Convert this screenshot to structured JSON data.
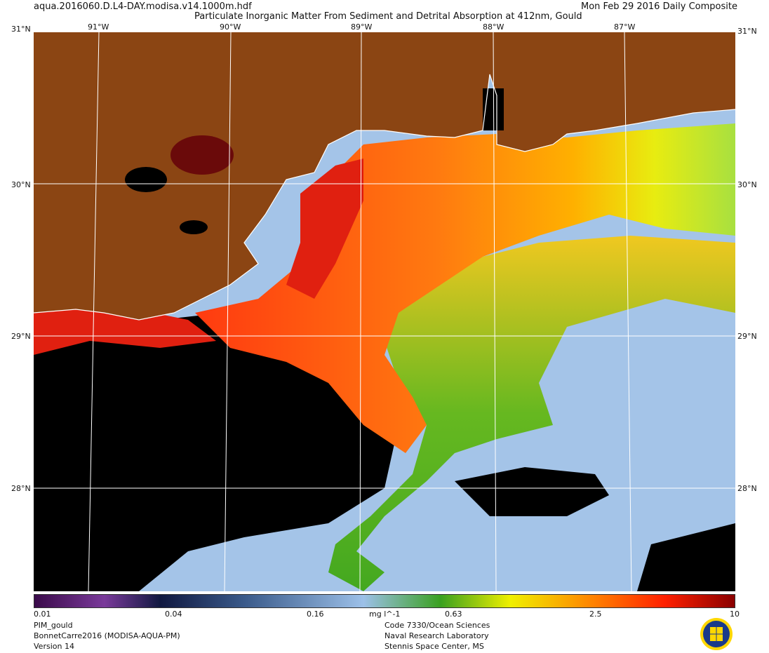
{
  "header": {
    "filename": "aqua.2016060.D.L4-DAY.modisa.v14.1000m.hdf",
    "title": "Particulate Inorganic Matter From Sediment and Detrital Absorption at 412nm, Gould",
    "date": "Mon Feb 29 2016 Daily Composite"
  },
  "axes": {
    "longitudes": [
      "91°W",
      "90°W",
      "89°W",
      "88°W",
      "87°W"
    ],
    "latitudes": [
      "31°N",
      "30°N",
      "29°N",
      "28°N"
    ],
    "corner_label": "31°N"
  },
  "colorbar": {
    "ticks": [
      "0.01",
      "0.04",
      "0.16",
      "0.63",
      "2.5",
      "10"
    ],
    "units": "mg l^-1",
    "colors": [
      "#3a0a4a",
      "#7a3a9a",
      "#101840",
      "#3a5a8a",
      "#9cc0e8",
      "#3aa020",
      "#f0f000",
      "#ff8000",
      "#ff2000",
      "#8a0000"
    ]
  },
  "colors": {
    "land": "#8b4513",
    "nodata": "#000000",
    "gridline": "#ffffff",
    "coast": "#ffffff"
  },
  "footer": {
    "left": [
      "PIM_gould",
      "BonnetCarre2016 (MODISA-AQUA-PM)",
      "Version 14"
    ],
    "center": [
      "Code 7330/Ocean Sciences",
      "Naval Research Laboratory",
      "Stennis Space Center, MS"
    ]
  }
}
